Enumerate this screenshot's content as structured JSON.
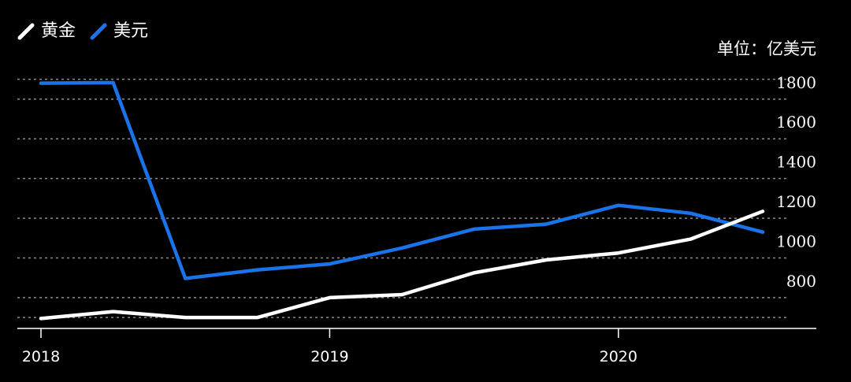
{
  "chart_data": {
    "type": "line",
    "unit_label": "单位：亿美元",
    "x_tick_labels": [
      "2018",
      "2019",
      "2020"
    ],
    "x": [
      2018.0,
      2018.25,
      2018.5,
      2018.75,
      2019.0,
      2019.25,
      2019.5,
      2019.75,
      2020.0,
      2020.25,
      2020.5
    ],
    "xlim": [
      2018.0,
      2020.5
    ],
    "ylim": [
      645,
      1950
    ],
    "yticks": [
      800,
      1000,
      1200,
      1400,
      1600,
      1800
    ],
    "grid": true,
    "legend_position": "top-left",
    "series": [
      {
        "name": "黄金",
        "color": "#ffffff",
        "values": [
          695,
          730,
          700,
          700,
          800,
          815,
          925,
          990,
          1025,
          1095,
          1235
        ]
      },
      {
        "name": "美元",
        "color": "#1a73e8",
        "values": [
          1880,
          1883,
          897,
          940,
          970,
          1050,
          1145,
          1170,
          1265,
          1225,
          1130
        ]
      }
    ]
  }
}
